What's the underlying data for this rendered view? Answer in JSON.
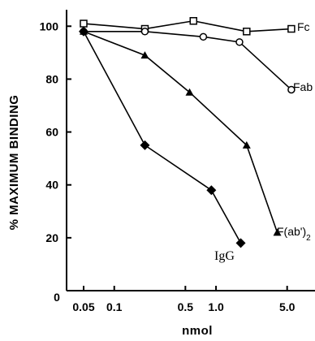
{
  "chart_data": {
    "type": "line",
    "title": "",
    "xlabel": "nmol",
    "ylabel": "% MAXIMUM BINDING",
    "x_scale": "log",
    "xlim": [
      0.05,
      7.0
    ],
    "ylim": [
      0,
      105
    ],
    "x_ticks": [
      0.05,
      0.1,
      0.5,
      1.0,
      5.0
    ],
    "x_tick_labels": [
      "0.05",
      "0.1",
      "0.5",
      "1.0",
      "5.0"
    ],
    "y_ticks": [
      0,
      20,
      40,
      60,
      80,
      100
    ],
    "y_tick_labels": [
      "0",
      "20",
      "40",
      "60",
      "80",
      "100"
    ],
    "origin_label": "0",
    "grid": false,
    "legend": "none (series labeled at line ends)",
    "series": [
      {
        "name": "Fc",
        "marker": "open-square",
        "x": [
          0.05,
          0.2,
          0.6,
          2.0,
          5.5
        ],
        "y": [
          101,
          99,
          102,
          98,
          99
        ]
      },
      {
        "name": "Fab",
        "marker": "open-circle",
        "x": [
          0.05,
          0.2,
          0.75,
          1.7,
          5.5
        ],
        "y": [
          98,
          98,
          96,
          94,
          76
        ]
      },
      {
        "name": "F(ab')2",
        "marker": "filled-triangle",
        "x": [
          0.05,
          0.2,
          0.55,
          2.0,
          4.0
        ],
        "y": [
          98,
          89,
          75,
          55,
          22
        ]
      },
      {
        "name": "IgG",
        "marker": "filled-diamond",
        "x": [
          0.05,
          0.2,
          0.9,
          1.75
        ],
        "y": [
          98,
          55,
          38,
          18
        ]
      }
    ],
    "series_labels": {
      "Fc": "Fc",
      "Fab": "Fab",
      "Fab2_main": "F(ab')",
      "Fab2_sub": "2",
      "IgG": "IgG"
    }
  }
}
